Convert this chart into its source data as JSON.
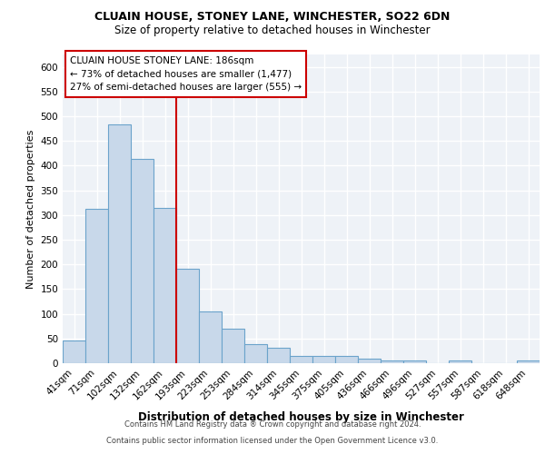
{
  "title1": "CLUAIN HOUSE, STONEY LANE, WINCHESTER, SO22 6DN",
  "title2": "Size of property relative to detached houses in Winchester",
  "xlabel": "Distribution of detached houses by size in Winchester",
  "ylabel": "Number of detached properties",
  "categories": [
    "41sqm",
    "71sqm",
    "102sqm",
    "132sqm",
    "162sqm",
    "193sqm",
    "223sqm",
    "253sqm",
    "284sqm",
    "314sqm",
    "345sqm",
    "375sqm",
    "405sqm",
    "436sqm",
    "466sqm",
    "496sqm",
    "527sqm",
    "557sqm",
    "587sqm",
    "618sqm",
    "648sqm"
  ],
  "values": [
    46,
    312,
    483,
    414,
    315,
    192,
    105,
    69,
    38,
    31,
    14,
    14,
    15,
    9,
    5,
    5,
    0,
    5,
    0,
    0,
    5
  ],
  "bar_color": "#c8d8ea",
  "bar_edge_color": "#6ba3cb",
  "red_line_x": 4.5,
  "annotation_title": "CLUAIN HOUSE STONEY LANE: 186sqm",
  "annotation_line1": "← 73% of detached houses are smaller (1,477)",
  "annotation_line2": "27% of semi-detached houses are larger (555) →",
  "annotation_box_color": "#ffffff",
  "annotation_box_edge": "#cc0000",
  "footer1": "Contains HM Land Registry data ® Crown copyright and database right 2024.",
  "footer2": "Contains public sector information licensed under the Open Government Licence v3.0.",
  "ylim": [
    0,
    625
  ],
  "yticks": [
    0,
    50,
    100,
    150,
    200,
    250,
    300,
    350,
    400,
    450,
    500,
    550,
    600
  ],
  "bg_color": "#eef2f7",
  "grid_color": "#ffffff",
  "title1_fontsize": 9.0,
  "title2_fontsize": 8.5,
  "xlabel_fontsize": 8.5,
  "ylabel_fontsize": 8.0,
  "tick_fontsize": 7.5,
  "annotation_fontsize": 7.5,
  "footer_fontsize": 6.0
}
